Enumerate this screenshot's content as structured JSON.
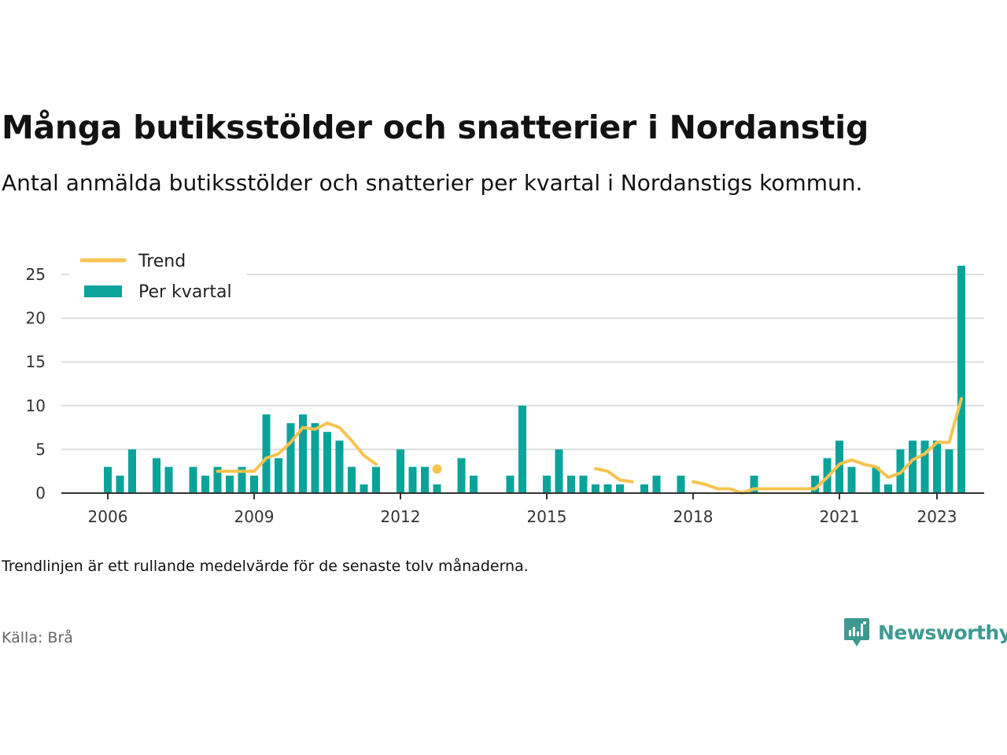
{
  "title": "Många butiksstölder och snatterier i Nordanstig",
  "subtitle": "Antal anmälda butiksstölder och snatterier per kvartal i Nordanstigs kommun.",
  "note": "Trendlinjen är ett rullande medelvärde för de senaste tolv månaderna.",
  "source": "Källa: Brå",
  "brand": {
    "name": "Newsworthy",
    "icon": "newsworthy-logo-icon"
  },
  "colors": {
    "bar": "#0aa39a",
    "trend": "#f7c34f",
    "grid": "#dddddd",
    "axis": "#333333",
    "brand": "#3e9a91"
  },
  "chart_data": {
    "type": "bar",
    "x_start": 2006.0,
    "x_step": 0.25,
    "x_tick_labels": [
      "2006",
      "2009",
      "2012",
      "2015",
      "2018",
      "2021",
      "2023"
    ],
    "x_ticks": [
      2006,
      2009,
      2012,
      2015,
      2018,
      2021,
      2023
    ],
    "ylim": [
      0,
      26
    ],
    "y_ticks": [
      0,
      5,
      10,
      15,
      20,
      25
    ],
    "grid": true,
    "legend_position": "top-left",
    "series": [
      {
        "name": "Per kvartal",
        "type": "bar",
        "values": [
          3,
          2,
          5,
          0,
          4,
          3,
          0,
          3,
          2,
          3,
          2,
          3,
          2,
          9,
          4,
          8,
          9,
          8,
          7,
          6,
          3,
          1,
          3,
          0,
          5,
          3,
          3,
          1,
          0,
          4,
          2,
          0,
          0,
          2,
          10,
          0,
          2,
          5,
          2,
          2,
          1,
          1,
          1,
          0,
          1,
          2,
          0,
          2,
          0,
          0,
          0,
          0,
          0,
          2,
          0,
          0,
          0,
          0,
          2,
          4,
          6,
          3,
          0,
          3,
          1,
          5,
          6,
          6,
          6,
          5,
          26
        ]
      },
      {
        "name": "Trend",
        "type": "line",
        "values": [
          null,
          null,
          null,
          null,
          null,
          null,
          null,
          null,
          null,
          2.5,
          2.5,
          2.5,
          2.5,
          4,
          4.5,
          5.8,
          7.5,
          7.3,
          8,
          7.5,
          6,
          4.3,
          3.3,
          null,
          null,
          null,
          null,
          2.75,
          null,
          null,
          null,
          null,
          null,
          null,
          null,
          null,
          null,
          null,
          null,
          null,
          2.8,
          2.5,
          1.5,
          1.3,
          null,
          null,
          null,
          null,
          1.3,
          1,
          0.5,
          0.5,
          0,
          0.5,
          0.5,
          0.5,
          0.5,
          0.5,
          0.5,
          1.8,
          3.3,
          3.8,
          3.3,
          3,
          1.8,
          2.3,
          3.8,
          4.5,
          5.8,
          5.8,
          10.8
        ]
      }
    ]
  }
}
